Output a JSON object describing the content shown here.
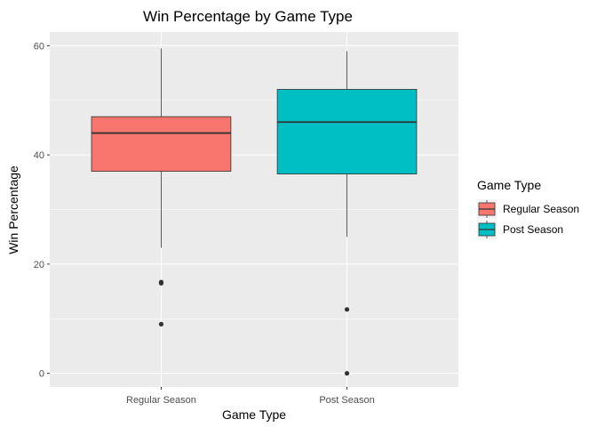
{
  "chart_data": {
    "type": "boxplot",
    "title": "Win Percentage by Game Type",
    "xlabel": "Game Type",
    "ylabel": "Win Percentage",
    "categories": [
      "Regular Season",
      "Post Season"
    ],
    "ylim": [
      -2.5,
      62.5
    ],
    "yticks": [
      0,
      20,
      40,
      60
    ],
    "grid": true,
    "legend": {
      "title": "Game Type",
      "position": "right",
      "entries": [
        "Regular Season",
        "Post Season"
      ]
    },
    "series": [
      {
        "name": "Regular Season",
        "color": "#F8766D",
        "whisker_low": 23,
        "q1": 37,
        "median": 44,
        "q3": 47,
        "whisker_high": 59.5,
        "outliers": [
          16.7,
          16.5,
          9
        ]
      },
      {
        "name": "Post Season",
        "color": "#00BFC4",
        "whisker_low": 25,
        "q1": 36.5,
        "median": 46,
        "q3": 52,
        "whisker_high": 59,
        "outliers": [
          11.7,
          0
        ]
      }
    ]
  },
  "colors": {
    "panel_background": "#EBEBEB",
    "grid_major": "#FFFFFF",
    "outline": "#333333"
  }
}
